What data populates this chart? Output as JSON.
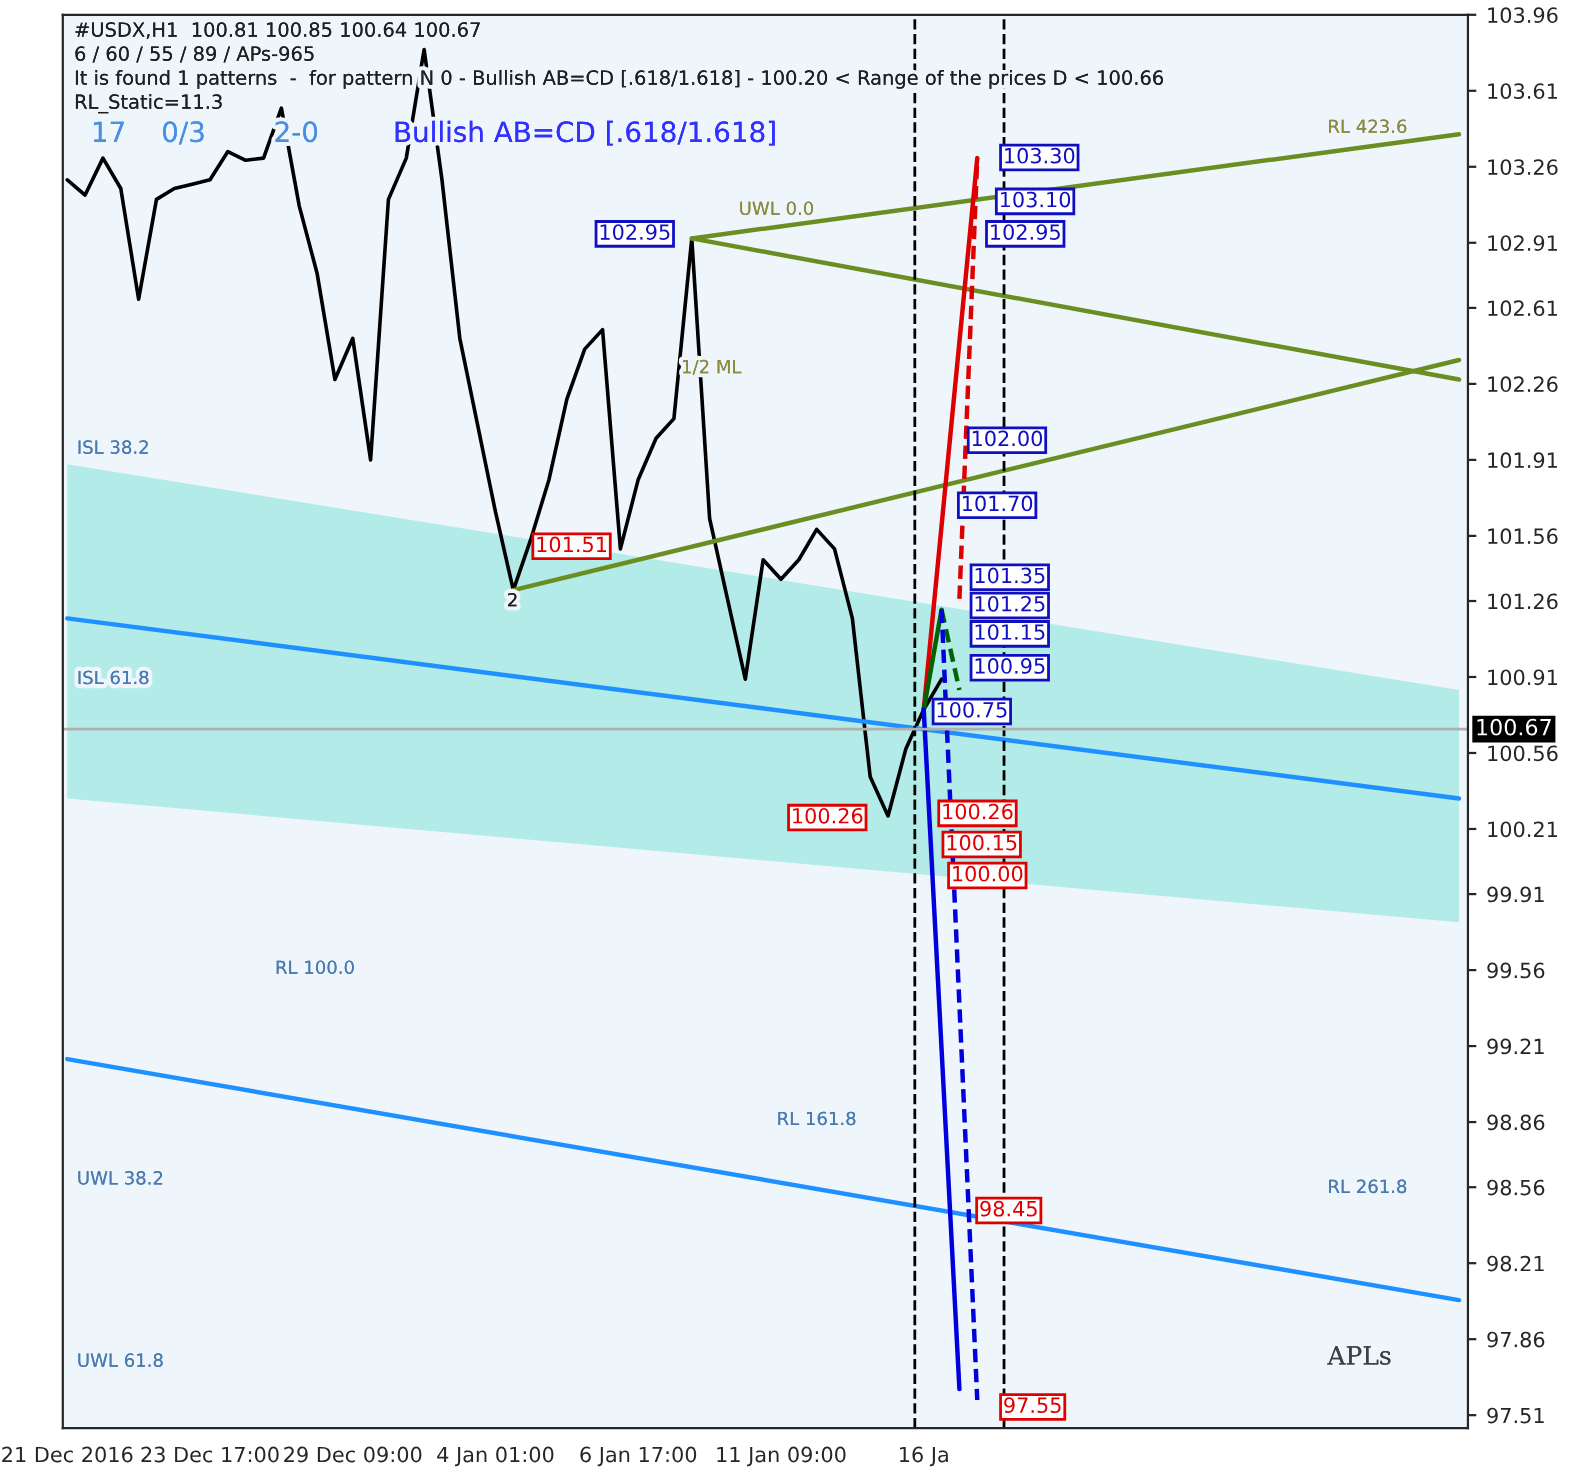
{
  "chart_data": {
    "type": "line",
    "legend": false,
    "grid": false,
    "categories": [
      "21 Dec 2016",
      null,
      null,
      null,
      null,
      null,
      null,
      null,
      "23 Dec 17:00",
      null,
      null,
      null,
      null,
      null,
      null,
      null,
      "29 Dec 09:00",
      null,
      null,
      null,
      null,
      null,
      null,
      null,
      "4 Jan 01:00",
      null,
      null,
      null,
      null,
      null,
      null,
      null,
      "6 Jan 17:00",
      null,
      null,
      null,
      null,
      null,
      null,
      null,
      "11 Jan 09:00",
      null,
      null,
      null,
      null,
      null,
      null,
      null,
      "16 Ja",
      null,
      null,
      null,
      null,
      null,
      null,
      null,
      null,
      null,
      null,
      null,
      null,
      null,
      null,
      null,
      null,
      null,
      null,
      null,
      null,
      null,
      null,
      null,
      null,
      null,
      null,
      null,
      null,
      null,
      null
    ],
    "ylim": [
      97.45,
      103.96
    ],
    "yticks": [
      97.51,
      97.86,
      98.21,
      98.56,
      98.86,
      99.21,
      99.56,
      99.91,
      100.21,
      100.56,
      100.91,
      101.26,
      101.56,
      101.91,
      102.26,
      102.61,
      102.91,
      103.26,
      103.61,
      103.96
    ],
    "series": [
      {
        "color": "#000000",
        "values": [
          103.2,
          103.13,
          103.3,
          103.16,
          102.65,
          103.11,
          103.16,
          103.18,
          103.2,
          103.33,
          103.29,
          103.3,
          103.53,
          103.08,
          102.77,
          102.28,
          102.47,
          101.91,
          103.11,
          103.3,
          103.8,
          103.2,
          102.47,
          102.07,
          101.67,
          101.31,
          101.55,
          101.82,
          102.19,
          102.42,
          102.51,
          101.5,
          101.82,
          102.01,
          102.1,
          102.93,
          101.64,
          101.27,
          100.9,
          101.45,
          101.36,
          101.45,
          101.59,
          101.5,
          101.18,
          100.45,
          100.27,
          100.58,
          100.76,
          100.9,
          null,
          null,
          null,
          null,
          null,
          null,
          null,
          null,
          null,
          null,
          null,
          null,
          null,
          null,
          null,
          null,
          null,
          null,
          null,
          null,
          null,
          null,
          null,
          null,
          null,
          null,
          null,
          null,
          null
        ]
      },
      {
        "color": "#1e90ff",
        "values": [
          101.18,
          null,
          null,
          null,
          null,
          null,
          null,
          null,
          null,
          null,
          null,
          null,
          null,
          null,
          null,
          null,
          null,
          null,
          null,
          null,
          null,
          null,
          null,
          null,
          null,
          null,
          null,
          null,
          null,
          null,
          null,
          null,
          null,
          null,
          null,
          null,
          null,
          null,
          null,
          null,
          null,
          null,
          null,
          null,
          null,
          null,
          null,
          null,
          null,
          null,
          null,
          null,
          null,
          null,
          null,
          null,
          null,
          null,
          null,
          null,
          null,
          null,
          null,
          null,
          null,
          null,
          null,
          null,
          null,
          null,
          null,
          null,
          null,
          null,
          null,
          null,
          null,
          null,
          100.35
        ],
        "lower": [
          100.35,
          null,
          null,
          null,
          null,
          null,
          null,
          null,
          null,
          null,
          null,
          null,
          null,
          null,
          null,
          null,
          null,
          null,
          null,
          null,
          null,
          null,
          null,
          null,
          null,
          null,
          null,
          null,
          null,
          null,
          null,
          null,
          null,
          null,
          null,
          null,
          null,
          null,
          null,
          null,
          null,
          null,
          null,
          null,
          null,
          null,
          null,
          null,
          null,
          null,
          null,
          null,
          null,
          null,
          null,
          null,
          null,
          null,
          null,
          null,
          null,
          null,
          null,
          null,
          null,
          null,
          null,
          null,
          null,
          null,
          null,
          null,
          null,
          null,
          null,
          null,
          null,
          null,
          99.78
        ],
        "upper": [
          101.89,
          null,
          null,
          null,
          null,
          null,
          null,
          null,
          null,
          null,
          null,
          null,
          null,
          null,
          null,
          null,
          null,
          null,
          null,
          null,
          null,
          null,
          null,
          null,
          null,
          null,
          null,
          null,
          null,
          null,
          null,
          null,
          null,
          null,
          null,
          null,
          null,
          null,
          null,
          null,
          null,
          null,
          null,
          null,
          null,
          null,
          null,
          null,
          null,
          null,
          null,
          null,
          null,
          null,
          null,
          null,
          null,
          null,
          null,
          null,
          null,
          null,
          null,
          null,
          null,
          null,
          null,
          null,
          null,
          null,
          null,
          null,
          null,
          null,
          null,
          null,
          null,
          null,
          100.85
        ]
      },
      {
        "color": "#1e90ff",
        "values": [
          99.15,
          null,
          null,
          null,
          null,
          null,
          null,
          null,
          null,
          null,
          null,
          null,
          null,
          null,
          null,
          null,
          null,
          null,
          null,
          null,
          null,
          null,
          null,
          null,
          null,
          null,
          null,
          null,
          null,
          null,
          null,
          null,
          null,
          null,
          null,
          null,
          null,
          null,
          null,
          null,
          null,
          null,
          null,
          null,
          null,
          null,
          null,
          null,
          null,
          null,
          null,
          null,
          null,
          null,
          null,
          null,
          null,
          null,
          null,
          null,
          null,
          null,
          null,
          null,
          null,
          null,
          null,
          null,
          null,
          null,
          null,
          null,
          null,
          null,
          null,
          null,
          null,
          null,
          98.04
        ]
      },
      {
        "color": "#6b8e23",
        "values": [
          null,
          null,
          null,
          null,
          null,
          null,
          null,
          null,
          null,
          null,
          null,
          null,
          null,
          null,
          null,
          null,
          null,
          null,
          null,
          null,
          null,
          null,
          null,
          null,
          null,
          null,
          null,
          null,
          null,
          null,
          null,
          null,
          null,
          null,
          null,
          102.93,
          null,
          null,
          null,
          null,
          null,
          null,
          null,
          null,
          null,
          null,
          null,
          null,
          null,
          null,
          null,
          null,
          null,
          null,
          null,
          null,
          null,
          null,
          null,
          null,
          null,
          null,
          null,
          null,
          null,
          null,
          null,
          null,
          null,
          null,
          null,
          null,
          null,
          null,
          null,
          null,
          null,
          null,
          103.41
        ]
      },
      {
        "color": "#6b8e23",
        "values": [
          null,
          null,
          null,
          null,
          null,
          null,
          null,
          null,
          null,
          null,
          null,
          null,
          null,
          null,
          null,
          null,
          null,
          null,
          null,
          null,
          null,
          null,
          null,
          null,
          null,
          null,
          null,
          null,
          null,
          null,
          null,
          null,
          null,
          null,
          null,
          102.93,
          null,
          null,
          null,
          null,
          null,
          null,
          null,
          null,
          null,
          null,
          null,
          null,
          null,
          null,
          null,
          null,
          null,
          null,
          null,
          null,
          null,
          null,
          null,
          null,
          null,
          null,
          null,
          null,
          null,
          null,
          null,
          null,
          null,
          null,
          null,
          null,
          null,
          null,
          null,
          null,
          null,
          null,
          102.28
        ]
      },
      {
        "color": "#6b8e23",
        "values": [
          null,
          null,
          null,
          null,
          null,
          null,
          null,
          null,
          null,
          null,
          null,
          null,
          null,
          null,
          null,
          null,
          null,
          null,
          null,
          null,
          null,
          null,
          null,
          null,
          null,
          101.31,
          null,
          null,
          null,
          null,
          null,
          null,
          null,
          null,
          null,
          null,
          null,
          null,
          null,
          null,
          null,
          null,
          null,
          null,
          null,
          null,
          null,
          null,
          null,
          null,
          null,
          null,
          null,
          null,
          null,
          null,
          null,
          null,
          null,
          null,
          null,
          null,
          null,
          null,
          null,
          null,
          null,
          null,
          null,
          null,
          null,
          null,
          null,
          null,
          null,
          null,
          null,
          null,
          102.37
        ]
      },
      {
        "color": "#dd0000",
        "values": [
          null,
          null,
          null,
          null,
          null,
          null,
          null,
          null,
          null,
          null,
          null,
          null,
          null,
          null,
          null,
          null,
          null,
          null,
          null,
          null,
          null,
          null,
          null,
          null,
          null,
          null,
          null,
          null,
          null,
          null,
          null,
          null,
          null,
          null,
          null,
          null,
          null,
          null,
          null,
          null,
          null,
          null,
          null,
          null,
          null,
          null,
          null,
          null,
          100.76,
          null,
          null,
          103.3,
          null,
          null,
          null,
          null,
          null,
          null,
          null,
          null,
          null,
          null,
          null,
          null,
          null,
          null,
          null,
          null,
          null,
          null,
          null,
          null,
          null,
          null,
          null,
          null,
          null,
          null,
          null
        ]
      },
      {
        "color": "#dd0000",
        "line_style": "dashed",
        "values": [
          null,
          null,
          null,
          null,
          null,
          null,
          null,
          null,
          null,
          null,
          null,
          null,
          null,
          null,
          null,
          null,
          null,
          null,
          null,
          null,
          null,
          null,
          null,
          null,
          null,
          null,
          null,
          null,
          null,
          null,
          null,
          null,
          null,
          null,
          null,
          null,
          null,
          null,
          null,
          null,
          null,
          null,
          null,
          null,
          null,
          null,
          null,
          null,
          null,
          null,
          101.27,
          103.3,
          null,
          null,
          null,
          null,
          null,
          null,
          null,
          null,
          null,
          null,
          null,
          null,
          null,
          null,
          null,
          null,
          null,
          null,
          null,
          null,
          null,
          null,
          null,
          null,
          null,
          null,
          null
        ]
      },
      {
        "color": "#006400",
        "values": [
          null,
          null,
          null,
          null,
          null,
          null,
          null,
          null,
          null,
          null,
          null,
          null,
          null,
          null,
          null,
          null,
          null,
          null,
          null,
          null,
          null,
          null,
          null,
          null,
          null,
          null,
          null,
          null,
          null,
          null,
          null,
          null,
          null,
          null,
          null,
          null,
          null,
          null,
          null,
          null,
          null,
          null,
          null,
          null,
          null,
          null,
          null,
          null,
          100.76,
          101.22,
          null,
          null,
          null,
          null,
          null,
          null,
          null,
          null,
          null,
          null,
          null,
          null,
          null,
          null,
          null,
          null,
          null,
          null,
          null,
          null,
          null,
          null,
          null,
          null,
          null,
          null,
          null,
          null,
          null
        ]
      },
      {
        "color": "#006400",
        "line_style": "dashed",
        "values": [
          null,
          null,
          null,
          null,
          null,
          null,
          null,
          null,
          null,
          null,
          null,
          null,
          null,
          null,
          null,
          null,
          null,
          null,
          null,
          null,
          null,
          null,
          null,
          null,
          null,
          null,
          null,
          null,
          null,
          null,
          null,
          null,
          null,
          null,
          null,
          null,
          null,
          null,
          null,
          null,
          null,
          null,
          null,
          null,
          null,
          null,
          null,
          null,
          null,
          101.22,
          100.85,
          null,
          null,
          null,
          null,
          null,
          null,
          null,
          null,
          null,
          null,
          null,
          null,
          null,
          null,
          null,
          null,
          null,
          null,
          null,
          null,
          null,
          null,
          null,
          null,
          null,
          null,
          null,
          null
        ]
      },
      {
        "color": "#0000dd",
        "values": [
          null,
          null,
          null,
          null,
          null,
          null,
          null,
          null,
          null,
          null,
          null,
          null,
          null,
          null,
          null,
          null,
          null,
          null,
          null,
          null,
          null,
          null,
          null,
          null,
          null,
          null,
          null,
          null,
          null,
          null,
          null,
          null,
          null,
          null,
          null,
          null,
          null,
          null,
          null,
          null,
          null,
          null,
          null,
          null,
          null,
          null,
          null,
          null,
          100.76,
          null,
          97.63,
          null,
          null,
          null,
          null,
          null,
          null,
          null,
          null,
          null,
          null,
          null,
          null,
          null,
          null,
          null,
          null,
          null,
          null,
          null,
          null,
          null,
          null,
          null,
          null,
          null,
          null,
          null,
          null
        ]
      },
      {
        "color": "#0000dd",
        "line_style": "dashed",
        "values": [
          null,
          null,
          null,
          null,
          null,
          null,
          null,
          null,
          null,
          null,
          null,
          null,
          null,
          null,
          null,
          null,
          null,
          null,
          null,
          null,
          null,
          null,
          null,
          null,
          null,
          null,
          null,
          null,
          null,
          null,
          null,
          null,
          null,
          null,
          null,
          null,
          null,
          null,
          null,
          null,
          null,
          null,
          null,
          null,
          null,
          null,
          null,
          null,
          null,
          101.22,
          null,
          97.58,
          null,
          null,
          null,
          null,
          null,
          null,
          null,
          null,
          null,
          null,
          null,
          null,
          null,
          null,
          null,
          null,
          null,
          null,
          null,
          null,
          null,
          null,
          null,
          null,
          null,
          null,
          null
        ]
      }
    ],
    "ref_lines": [
      {
        "axis": "y",
        "value": 100.67,
        "label": "100.67",
        "color": "#b0b0b0"
      }
    ],
    "annotations": [
      "#USDX,H1  100.81 100.85 100.64 100.67",
      "6 / 60 / 55 / 89 / APs-965",
      "It is found 1 patterns  -  for pattern N 0 - Bullish AB=CD [.618/1.618] - 100.20 < Range of the prices D < 100.66",
      "RL_Static=11.3",
      "17",
      "0/3",
      "2-0",
      "Bullish AB=CD [.618/1.618]",
      "APLs",
      "103.30",
      "103.10",
      "102.95",
      "102.00",
      "101.70",
      "101.35",
      "101.25",
      "101.15",
      "100.95",
      "100.75",
      "100.26",
      "100.15",
      "100.00",
      "98.45",
      "97.55",
      "102.95",
      "101.51",
      "100.26",
      "ISL 38.2",
      "ISL 61.8",
      "UWL 0.0",
      "1/2 ML",
      "RL 161.8",
      "RL 100.0",
      "RL 261.8",
      "RL 423.6",
      "UWL 38.2",
      "UWL 61.8",
      "2"
    ]
  }
}
